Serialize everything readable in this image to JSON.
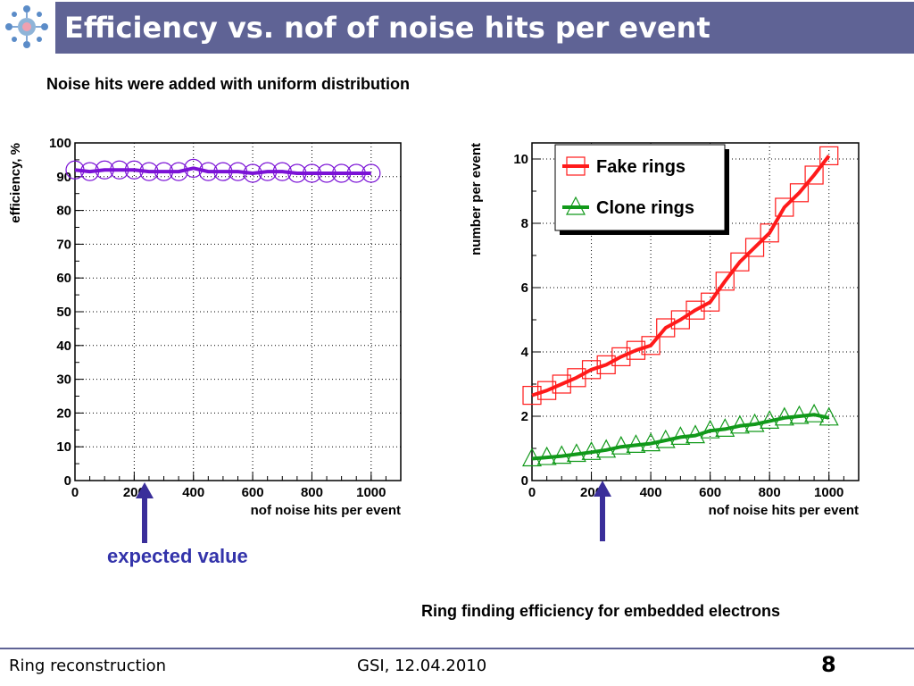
{
  "header": {
    "title": "Efficiency vs. nof of noise hits per event"
  },
  "subtitle": "Noise hits were added with uniform distribution",
  "annotations": {
    "expected_value": "expected value",
    "caption": "Ring finding efficiency for embedded electrons"
  },
  "footer": {
    "left": "Ring reconstruction",
    "middle": "GSI, 12.04.2010",
    "page": "8"
  },
  "colors": {
    "title_bar": "#5f6395",
    "efficiency": "#7b12d6",
    "fake": "#ff1a1a",
    "clone": "#11991a",
    "arrow": "#3a2e9a",
    "expected_text": "#3333aa"
  },
  "chart_data": [
    {
      "type": "line",
      "xlabel": "nof noise hits per event",
      "ylabel": "efficiency, %",
      "xlim": [
        0,
        1100
      ],
      "ylim": [
        0,
        100
      ],
      "xticks": [
        "0",
        "200",
        "400",
        "600",
        "800",
        "1000"
      ],
      "yticks": [
        "0",
        "10",
        "20",
        "30",
        "40",
        "50",
        "60",
        "70",
        "80",
        "90",
        "100"
      ],
      "grid": true,
      "series": [
        {
          "marker": "circle",
          "x": [
            0,
            50,
            100,
            150,
            200,
            250,
            300,
            350,
            400,
            450,
            500,
            550,
            600,
            650,
            700,
            750,
            800,
            850,
            900,
            950,
            1000
          ],
          "y": [
            92,
            91.5,
            92,
            92,
            92,
            91.5,
            91.5,
            91.5,
            92.5,
            91.5,
            91.5,
            91.5,
            91,
            91.5,
            91.5,
            91,
            91,
            91,
            91,
            91,
            91
          ]
        }
      ]
    },
    {
      "type": "line",
      "xlabel": "nof noise hits per event",
      "ylabel": "number per event",
      "xlim": [
        0,
        1100
      ],
      "ylim": [
        0,
        10.5
      ],
      "xticks": [
        "0",
        "200",
        "400",
        "600",
        "800",
        "1000"
      ],
      "yticks": [
        "0",
        "2",
        "4",
        "6",
        "8",
        "10"
      ],
      "grid": true,
      "legend": "top-left",
      "series": [
        {
          "name": "Fake rings",
          "marker": "square",
          "x": [
            0,
            50,
            100,
            150,
            200,
            250,
            300,
            350,
            400,
            450,
            500,
            550,
            600,
            650,
            700,
            750,
            800,
            850,
            900,
            950,
            1000
          ],
          "y": [
            2.65,
            2.8,
            3.0,
            3.2,
            3.45,
            3.6,
            3.85,
            4.05,
            4.2,
            4.75,
            5.0,
            5.3,
            5.55,
            6.2,
            6.8,
            7.25,
            7.7,
            8.5,
            8.95,
            9.5,
            10.1
          ]
        },
        {
          "name": "Clone rings",
          "marker": "triangle",
          "x": [
            0,
            50,
            100,
            150,
            200,
            250,
            300,
            350,
            400,
            450,
            500,
            550,
            600,
            650,
            700,
            750,
            800,
            850,
            900,
            950,
            1000
          ],
          "y": [
            0.68,
            0.72,
            0.76,
            0.82,
            0.88,
            0.95,
            1.05,
            1.1,
            1.15,
            1.25,
            1.35,
            1.4,
            1.55,
            1.6,
            1.7,
            1.75,
            1.85,
            1.95,
            2.0,
            2.05,
            1.95
          ]
        }
      ]
    }
  ]
}
